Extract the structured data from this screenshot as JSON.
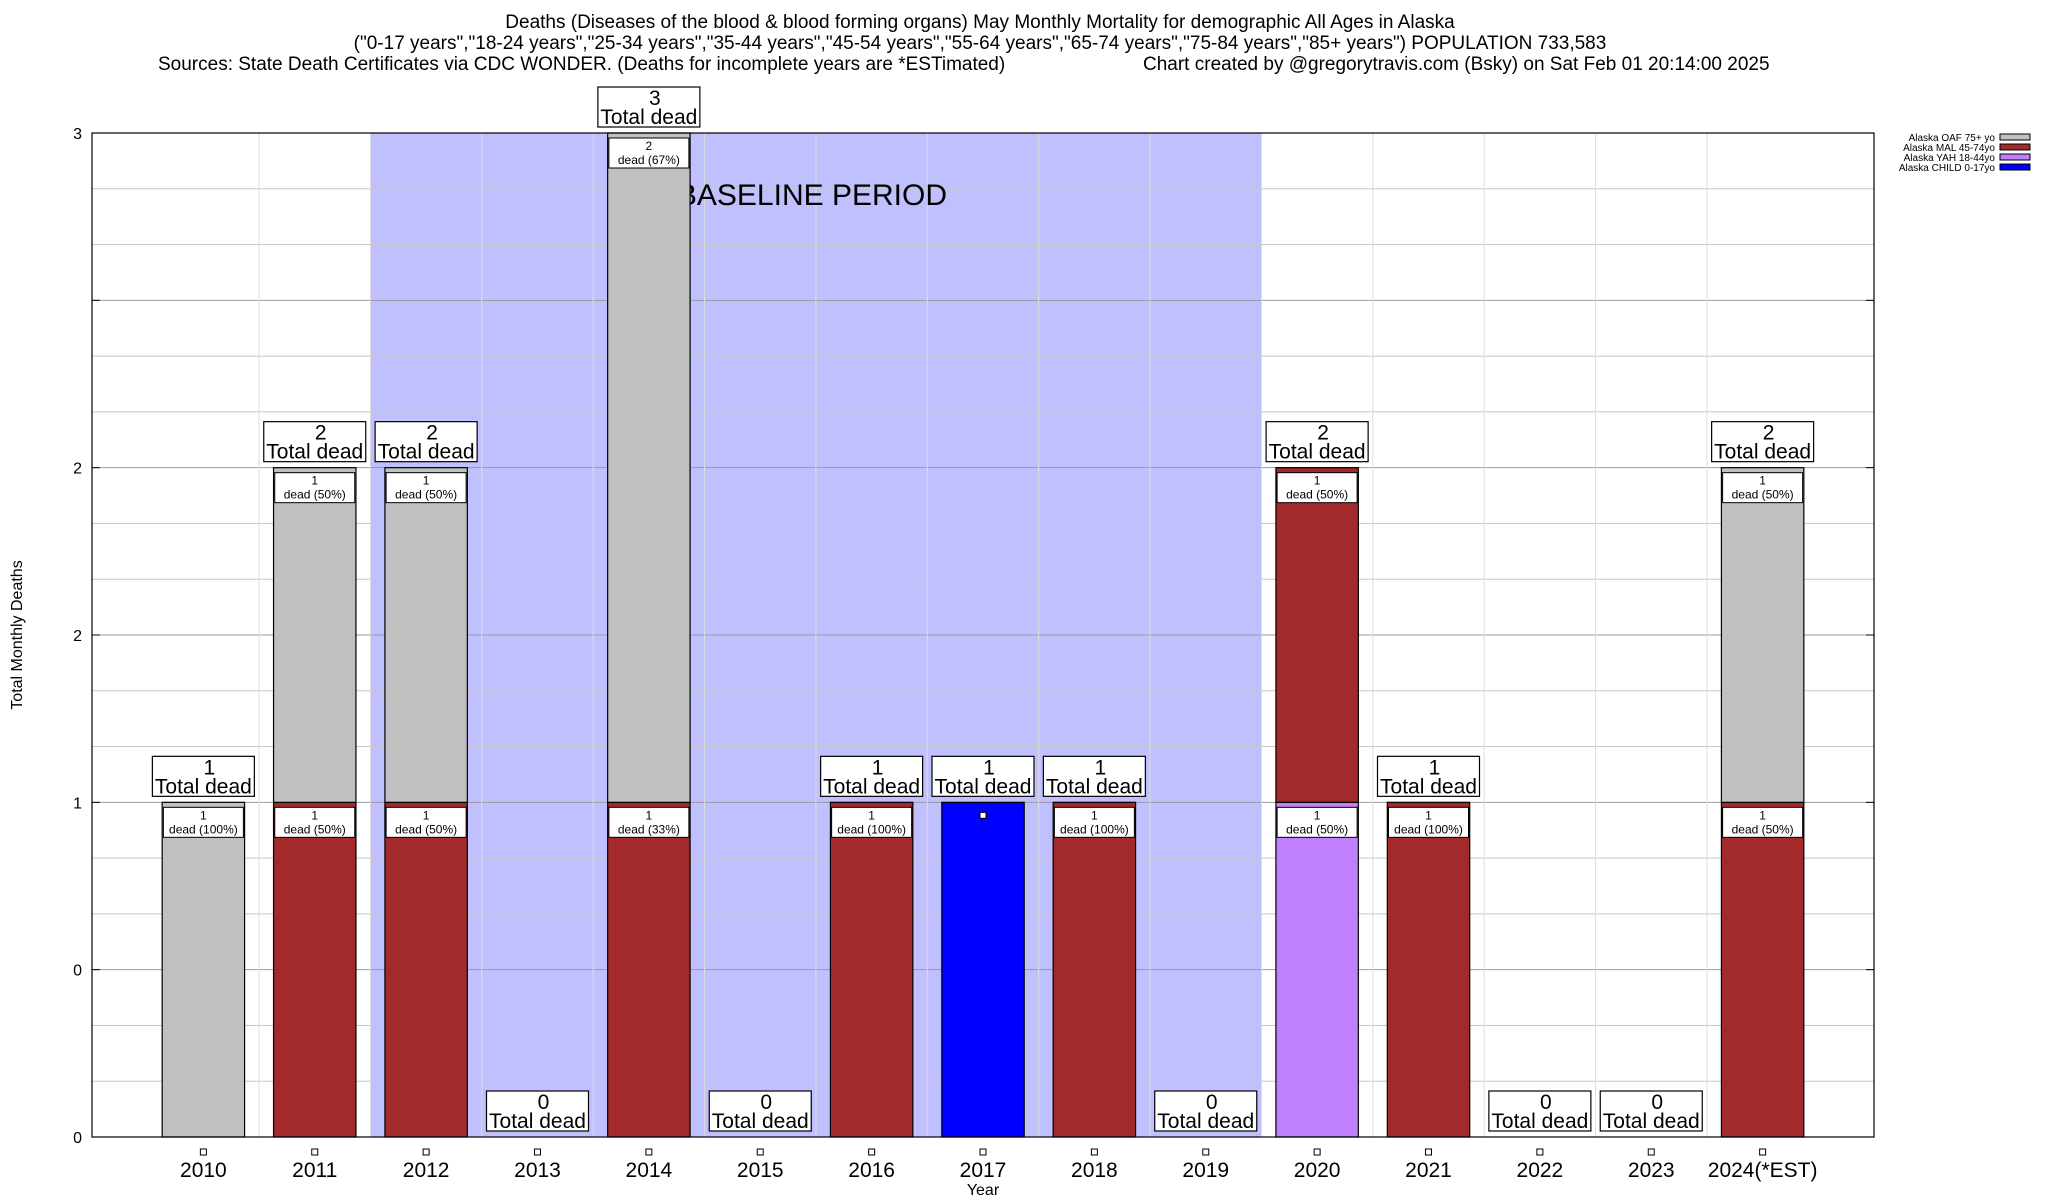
{
  "header": {
    "title_line1": "Deaths (Diseases of the blood & blood forming organs) May Monthly Mortality for demographic All Ages in Alaska",
    "title_line2": "(\"0-17 years\",\"18-24 years\",\"25-34 years\",\"35-44 years\",\"45-54 years\",\"55-64 years\",\"65-74 years\",\"75-84 years\",\"85+ years\") POPULATION 733,583",
    "sources": "Sources: State Death Certificates via CDC WONDER. (Deaths for incomplete years are *ESTimated)",
    "credit": "Chart created by @gregorytravis.com (Bsky) on Sat Feb 01 20:14:00 2025"
  },
  "chart_data": {
    "type": "bar",
    "stacked": true,
    "xlabel": "Year",
    "ylabel": "Total Monthly Deaths",
    "ylim": [
      0,
      3
    ],
    "ytick_labels": [
      "0",
      "0",
      "1",
      "2",
      "2",
      "3"
    ],
    "categories": [
      "2010",
      "2011",
      "2012",
      "2013",
      "2014",
      "2015",
      "2016",
      "2017",
      "2018",
      "2019",
      "2020",
      "2021",
      "2022",
      "2023",
      "2024(*EST)"
    ],
    "totals": [
      1,
      2,
      2,
      0,
      3,
      0,
      1,
      1,
      1,
      0,
      2,
      1,
      0,
      0,
      2
    ],
    "total_label_suffix": "Total dead",
    "baseline": {
      "label": "BASELINE PERIOD",
      "start": "2012",
      "end": "2019",
      "color": "#c0c0fe"
    },
    "series": [
      {
        "name": "Alaska CHILD 0-17yo",
        "color": "#0000fe",
        "values": [
          0,
          0,
          0,
          0,
          0,
          0,
          0,
          1,
          0,
          0,
          0,
          0,
          0,
          0,
          0
        ]
      },
      {
        "name": "Alaska YAH 18-44yo",
        "color": "#c080fe",
        "values": [
          0,
          0,
          0,
          0,
          0,
          0,
          0,
          0,
          0,
          0,
          1,
          0,
          0,
          0,
          0
        ]
      },
      {
        "name": "Alaska MAL 45-74yo",
        "color": "#a32a2a",
        "values": [
          0,
          1,
          1,
          0,
          1,
          0,
          1,
          0,
          1,
          0,
          1,
          1,
          0,
          0,
          1
        ]
      },
      {
        "name": "Alaska OAF 75+ yo",
        "color": "#c0c0c0",
        "values": [
          1,
          1,
          1,
          0,
          2,
          0,
          0,
          0,
          0,
          0,
          0,
          0,
          0,
          0,
          1
        ]
      }
    ],
    "segment_labels": [
      {
        "category": "2010",
        "series": "Alaska OAF 75+ yo",
        "count": "1",
        "text": "dead (100%)"
      },
      {
        "category": "2011",
        "series": "Alaska MAL 45-74yo",
        "count": "1",
        "text": "dead (50%)"
      },
      {
        "category": "2011",
        "series": "Alaska OAF 75+ yo",
        "count": "1",
        "text": "dead (50%)"
      },
      {
        "category": "2012",
        "series": "Alaska MAL 45-74yo",
        "count": "1",
        "text": "dead (50%)"
      },
      {
        "category": "2012",
        "series": "Alaska OAF 75+ yo",
        "count": "1",
        "text": "dead (50%)"
      },
      {
        "category": "2014",
        "series": "Alaska MAL 45-74yo",
        "count": "1",
        "text": "dead (33%)"
      },
      {
        "category": "2014",
        "series": "Alaska OAF 75+ yo",
        "count": "2",
        "text": "dead (67%)"
      },
      {
        "category": "2016",
        "series": "Alaska MAL 45-74yo",
        "count": "1",
        "text": "dead (100%)"
      },
      {
        "category": "2018",
        "series": "Alaska MAL 45-74yo",
        "count": "1",
        "text": "dead (100%)"
      },
      {
        "category": "2020",
        "series": "Alaska YAH 18-44yo",
        "count": "1",
        "text": "dead (50%)"
      },
      {
        "category": "2020",
        "series": "Alaska MAL 45-74yo",
        "count": "1",
        "text": "dead (50%)"
      },
      {
        "category": "2021",
        "series": "Alaska MAL 45-74yo",
        "count": "1",
        "text": "dead (100%)"
      },
      {
        "category": "2024(*EST)",
        "series": "Alaska MAL 45-74yo",
        "count": "1",
        "text": "dead (50%)"
      },
      {
        "category": "2024(*EST)",
        "series": "Alaska OAF 75+ yo",
        "count": "1",
        "text": "dead (50%)"
      }
    ],
    "legend": {
      "placement": "top-right, outside plot",
      "entries": [
        {
          "label": "Alaska OAF 75+ yo",
          "color": "#c0c0c0"
        },
        {
          "label": "Alaska MAL 45-74yo",
          "color": "#a32a2a"
        },
        {
          "label": "Alaska YAH 18-44yo",
          "color": "#c080fe"
        },
        {
          "label": "Alaska CHILD 0-17yo",
          "color": "#0000fe"
        }
      ]
    },
    "grid": true
  }
}
